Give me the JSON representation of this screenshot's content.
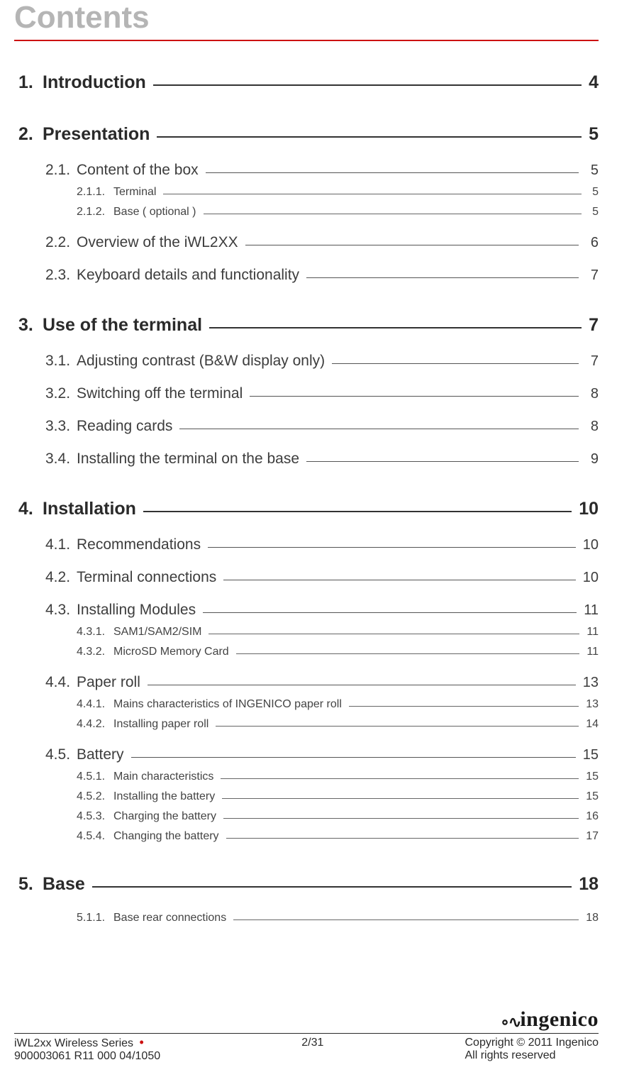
{
  "heading": "Contents",
  "colors": {
    "heading_text": "#b5b5b5",
    "heading_rule": "#cc1111",
    "body_text": "#3a3a3a",
    "bullet": "#cc1111",
    "rule": "#2a2a2a"
  },
  "typography": {
    "heading_fontsize_pt": 33,
    "lvl1_fontsize_pt": 19,
    "lvl2_fontsize_pt": 16,
    "lvl3_fontsize_pt": 12,
    "footer_fontsize_pt": 12
  },
  "toc": [
    {
      "level": 1,
      "num": "1.",
      "title": "Introduction",
      "page": "4"
    },
    {
      "level": 1,
      "num": "2.",
      "title": "Presentation",
      "page": "5"
    },
    {
      "level": 2,
      "num": "2.1.",
      "title": "Content of the box",
      "page": "5"
    },
    {
      "level": 3,
      "num": "2.1.1.",
      "title": "Terminal",
      "page": "5"
    },
    {
      "level": 3,
      "num": "2.1.2.",
      "title": "Base ( optional )",
      "page": "5"
    },
    {
      "level": 2,
      "num": "2.2.",
      "title": "Overview of the iWL2XX",
      "page": "6"
    },
    {
      "level": 2,
      "num": "2.3.",
      "title": "Keyboard details and functionality",
      "page": "7"
    },
    {
      "level": 1,
      "num": "3.",
      "title": "Use of the terminal",
      "page": "7"
    },
    {
      "level": 2,
      "num": "3.1.",
      "title": "Adjusting contrast (B&W display only)",
      "page": "7"
    },
    {
      "level": 2,
      "num": "3.2.",
      "title": "Switching off the terminal",
      "page": "8"
    },
    {
      "level": 2,
      "num": "3.3.",
      "title": "Reading cards",
      "page": "8"
    },
    {
      "level": 2,
      "num": "3.4.",
      "title": "Installing the terminal on the base",
      "page": "9"
    },
    {
      "level": 1,
      "num": "4.",
      "title": "Installation",
      "page": "10"
    },
    {
      "level": 2,
      "num": "4.1.",
      "title": "Recommendations",
      "page": "10"
    },
    {
      "level": 2,
      "num": "4.2.",
      "title": "Terminal connections",
      "page": "10"
    },
    {
      "level": 2,
      "num": "4.3.",
      "title": "Installing Modules",
      "page": "11"
    },
    {
      "level": 3,
      "num": "4.3.1.",
      "title": "SAM1/SAM2/SIM",
      "page": "11"
    },
    {
      "level": 3,
      "num": "4.3.2.",
      "title": "MicroSD Memory Card",
      "page": "11"
    },
    {
      "level": 2,
      "num": "4.4.",
      "title": "Paper roll",
      "page": "13"
    },
    {
      "level": 3,
      "num": "4.4.1.",
      "title": "Mains characteristics of INGENICO paper roll",
      "page": "13"
    },
    {
      "level": 3,
      "num": "4.4.2.",
      "title": "Installing paper roll",
      "page": "14"
    },
    {
      "level": 2,
      "num": "4.5.",
      "title": "Battery",
      "page": "15"
    },
    {
      "level": 3,
      "num": "4.5.1.",
      "title": "Main characteristics",
      "page": "15"
    },
    {
      "level": 3,
      "num": "4.5.2.",
      "title": "Installing the battery",
      "page": "15"
    },
    {
      "level": 3,
      "num": "4.5.3.",
      "title": "Charging the battery",
      "page": "16"
    },
    {
      "level": 3,
      "num": "4.5.4.",
      "title": "Changing the battery",
      "page": "17"
    },
    {
      "level": 1,
      "num": "5.",
      "title": "Base",
      "page": "18"
    },
    {
      "level": 3,
      "num": "5.1.1.",
      "title": "Base rear connections",
      "page": "18"
    }
  ],
  "footer": {
    "logo_text": "ingenico",
    "left_line1_prefix": "iWL2xx Wireless Series",
    "left_line1_bullet": "•",
    "left_line2": "900003061 R11 000 04/1050",
    "center_line1": "2/31",
    "right_line1": "Copyright © 2011 Ingenico",
    "right_line2": "All rights reserved"
  }
}
